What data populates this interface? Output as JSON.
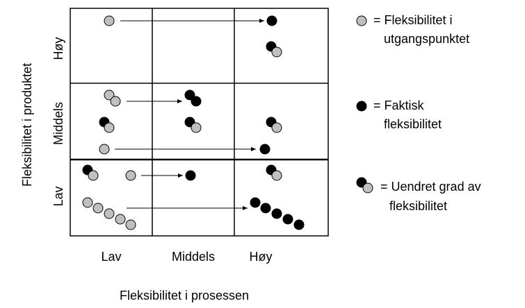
{
  "axes": {
    "y_label": "Fleksibilitet i produktet",
    "x_label": "Fleksibilitet i prosessen"
  },
  "rows": [
    "Høy",
    "Middels",
    "Lav"
  ],
  "columns": [
    "Lav",
    "Middels",
    "Høy"
  ],
  "legend": [
    {
      "lines": [
        "= Fleksibilitet i",
        "utgangspunktet"
      ]
    },
    {
      "lines": [
        "= Faktisk",
        "fleksibilitet"
      ]
    },
    {
      "lines": [
        "= Uendret grad av",
        "fleksibilitet"
      ]
    }
  ]
}
